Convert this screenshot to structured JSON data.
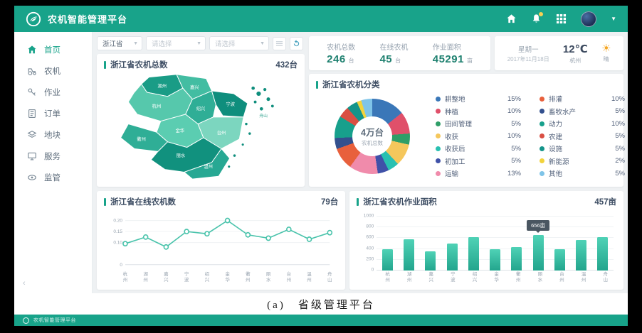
{
  "header": {
    "title": "农机智能管理平台",
    "icons": [
      "home-icon",
      "bell-icon",
      "app-grid-icon",
      "avatar",
      "caret-down-icon"
    ]
  },
  "sidebar": {
    "items": [
      {
        "label": "首页",
        "icon": "home",
        "active": true
      },
      {
        "label": "农机",
        "icon": "tractor",
        "active": false
      },
      {
        "label": "作业",
        "icon": "key",
        "active": false
      },
      {
        "label": "订单",
        "icon": "order",
        "active": false
      },
      {
        "label": "地块",
        "icon": "land",
        "active": false
      },
      {
        "label": "服务",
        "icon": "service",
        "active": false
      },
      {
        "label": "监管",
        "icon": "eye",
        "active": false
      }
    ],
    "collapse_glyph": "‹"
  },
  "filters": {
    "province": "浙江省",
    "select2_placeholder": "请选择",
    "select3_placeholder": "请选择",
    "buttons": [
      "list-icon",
      "reset-icon"
    ]
  },
  "stats": {
    "items": [
      {
        "label": "农机总数",
        "value": "246",
        "unit": "台"
      },
      {
        "label": "在线农机",
        "value": "45",
        "unit": "台"
      },
      {
        "label": "作业面积",
        "value": "45291",
        "unit": "亩"
      }
    ]
  },
  "weather": {
    "weekday": "星期一",
    "date": "2017年11月18日",
    "temperature": "12℃",
    "city": "杭州",
    "condition": "晴",
    "icon": "sun-icon"
  },
  "caption": "(a)　省级管理平台",
  "footer_bar": {
    "title": "农机智能管理平台"
  },
  "chart_data": [
    {
      "type": "map",
      "title": "浙江省农机总数",
      "total": "432台",
      "regions": [
        "湖州",
        "嘉兴",
        "杭州",
        "绍兴",
        "宁波",
        "金华",
        "衢州",
        "台州",
        "丽水",
        "温州",
        "舟山"
      ]
    },
    {
      "type": "pie",
      "title": "浙江省农机分类",
      "center_value": "4万台",
      "center_label": "农机总数",
      "legend_position": "right",
      "series": [
        {
          "name": "耕整地",
          "pct": 15,
          "color": "#3a77b8"
        },
        {
          "name": "种植",
          "pct": 10,
          "color": "#e0506a"
        },
        {
          "name": "田间管理",
          "pct": 5,
          "color": "#2f9e68"
        },
        {
          "name": "收获",
          "pct": 10,
          "color": "#f5c75c"
        },
        {
          "name": "收获后",
          "pct": 5,
          "color": "#29c0b1"
        },
        {
          "name": "初加工",
          "pct": 5,
          "color": "#3f51a8"
        },
        {
          "name": "运输",
          "pct": 13,
          "color": "#f08bab"
        },
        {
          "name": "排灌",
          "pct": 10,
          "color": "#e8603c"
        },
        {
          "name": "畜牧水产",
          "pct": 5,
          "color": "#33508e"
        },
        {
          "name": "动力",
          "pct": 10,
          "color": "#17a08c"
        },
        {
          "name": "农建",
          "pct": 5,
          "color": "#d94f43"
        },
        {
          "name": "设施",
          "pct": 5,
          "color": "#14948a"
        },
        {
          "name": "新能源",
          "pct": 2,
          "color": "#f2d33c"
        },
        {
          "name": "其他",
          "pct": 5,
          "color": "#7fc4e8"
        }
      ]
    },
    {
      "type": "line",
      "title": "浙江省在线农机数",
      "total": "79台",
      "x": [
        "杭州",
        "湖州",
        "嘉兴",
        "宁波",
        "绍兴",
        "金华",
        "衢州",
        "丽水",
        "台州",
        "温州",
        "舟山"
      ],
      "values": [
        0.095,
        0.125,
        0.08,
        0.15,
        0.14,
        0.2,
        0.135,
        0.12,
        0.16,
        0.115,
        0.145
      ],
      "yticks": [
        "0.20",
        "0.15",
        "0.10",
        "0"
      ],
      "ytick_values": [
        0.2,
        0.15,
        0.1,
        0
      ],
      "ylim": [
        0,
        0.22
      ],
      "color": "#49c3ab",
      "grid": true
    },
    {
      "type": "bar",
      "title": "浙江省农机作业面积",
      "total": "457亩",
      "categories": [
        "杭州",
        "湖州",
        "嘉兴",
        "宁波",
        "绍兴",
        "金华",
        "衢州",
        "丽水",
        "台州",
        "温州",
        "舟山"
      ],
      "values": [
        400,
        580,
        350,
        500,
        620,
        400,
        430,
        656,
        400,
        570,
        620
      ],
      "yticks": [
        "1000",
        "800",
        "600",
        "400",
        "200",
        "0"
      ],
      "ytick_values": [
        1000,
        800,
        600,
        400,
        200,
        0
      ],
      "ylim": [
        0,
        1000
      ],
      "tooltip": {
        "index": 7,
        "text": "656亩"
      },
      "color": "#35c0a5",
      "grid": true
    }
  ]
}
